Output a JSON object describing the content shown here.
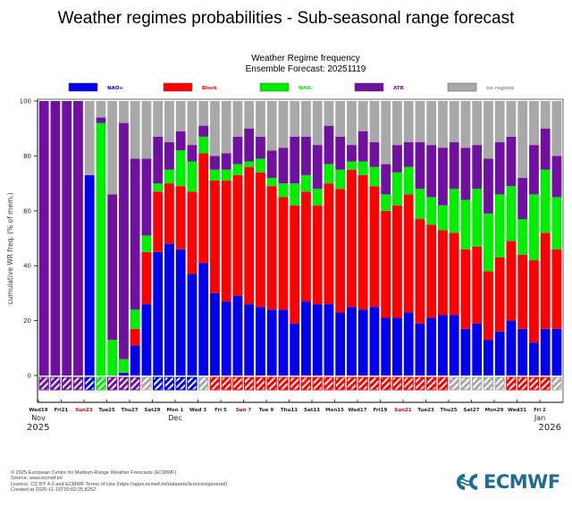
{
  "page": {
    "title": "Weather regimes probabilities - Sub-seasonal range forecast"
  },
  "footer": {
    "lines": [
      "© 2025 European Centre for Medium-Range Weather Forecasts (ECMWF)",
      "Source: www.ecmwf.int",
      "Licence: CC BY 4.0 and ECMWF Terms of Use (https://apps.ecmwf.int/datasets/licences/general/)",
      "Created at 2025-11-19T20:02:25.825Z"
    ],
    "logo_text": "ECMWF"
  },
  "chart_data": {
    "type": "bar",
    "stacked": true,
    "title": "Weather Regime frequency",
    "subtitle": "Ensemble Forecast: 20251119",
    "ylabel": "cumulative WR freq. (% of mem.)",
    "xlabel": "",
    "ylim": [
      0,
      100
    ],
    "yticks": [
      0,
      20,
      40,
      60,
      80,
      100
    ],
    "grid": false,
    "legend_position": "top",
    "start_date": "2025-11-19",
    "xtick_labels": [
      "Wed19",
      "Fri21",
      "Sun23",
      "Tue25",
      "Thu27",
      "Sat29",
      "Mon 1",
      "Wed 3",
      "Fri 5",
      "Sun 7",
      "Tue 9",
      "Thu11",
      "Sat13",
      "Mon15",
      "Wed17",
      "Fri19",
      "Sun21",
      "Tue23",
      "Thu25",
      "Sat27",
      "Mon29",
      "Wed31",
      "Fri 2"
    ],
    "xtick_highlight_color": "#d00000",
    "xtick_highlight": [
      "Sun23",
      "Sun 7",
      "Sun21"
    ],
    "month_labels": [
      {
        "label": "Nov",
        "tick": "Wed19"
      },
      {
        "label": "Dec",
        "tick": "Mon 1"
      },
      {
        "label": "Jan",
        "tick": "Fri 2"
      }
    ],
    "year_labels": [
      {
        "label": "2025",
        "side": "left"
      },
      {
        "label": "2026",
        "side": "right"
      }
    ],
    "series": [
      {
        "name": "NAO+",
        "color": "#0000ee",
        "values": [
          0,
          0,
          0,
          0,
          73,
          0,
          0,
          1,
          11,
          26,
          45,
          48,
          46,
          37,
          41,
          30,
          27,
          29,
          26,
          25,
          24,
          24,
          19,
          27,
          26,
          26,
          23,
          25,
          24,
          25,
          21,
          21,
          23,
          19,
          21,
          22,
          22,
          17,
          19,
          13,
          16,
          20,
          17,
          12,
          17,
          17
        ]
      },
      {
        "name": "Block",
        "color": "#ff0000",
        "values": [
          0,
          0,
          0,
          0,
          0,
          0,
          0,
          0,
          6,
          19,
          22,
          22,
          23,
          30,
          40,
          41,
          44,
          44,
          50,
          49,
          45,
          41,
          43,
          40,
          36,
          44,
          45,
          50,
          49,
          44,
          39,
          41,
          43,
          38,
          34,
          31,
          30,
          29,
          28,
          25,
          27,
          29,
          27,
          30,
          35,
          29
        ]
      },
      {
        "name": "NAO-",
        "color": "#00ee00",
        "values": [
          0,
          0,
          0,
          0,
          0,
          92,
          13,
          5,
          7,
          6,
          3,
          5,
          13,
          11,
          6,
          4,
          4,
          4,
          2,
          5,
          3,
          5,
          8,
          6,
          6,
          7,
          7,
          3,
          5,
          7,
          6,
          12,
          10,
          11,
          10,
          9,
          16,
          18,
          21,
          21,
          23,
          20,
          13,
          24,
          23,
          19
        ]
      },
      {
        "name": "ATR",
        "color": "#7010a0",
        "values": [
          100,
          100,
          100,
          100,
          0,
          2,
          53,
          86,
          55,
          28,
          17,
          10,
          7,
          6,
          4,
          5,
          6,
          10,
          12,
          8,
          10,
          13,
          17,
          14,
          16,
          14,
          12,
          6,
          11,
          9,
          11,
          10,
          9,
          17,
          19,
          21,
          17,
          19,
          16,
          20,
          19,
          18,
          15,
          18,
          15,
          15
        ]
      },
      {
        "name": "no regime",
        "color": "#a8a8a8",
        "values": [
          0,
          0,
          0,
          0,
          27,
          6,
          34,
          8,
          21,
          21,
          13,
          15,
          11,
          16,
          9,
          20,
          19,
          13,
          10,
          13,
          18,
          17,
          13,
          13,
          16,
          9,
          13,
          16,
          11,
          15,
          23,
          16,
          15,
          15,
          16,
          17,
          15,
          17,
          16,
          21,
          15,
          13,
          28,
          16,
          10,
          20
        ]
      }
    ],
    "dominant_regime": [
      "ATR",
      "ATR",
      "ATR",
      "ATR",
      "NAO+",
      "NAO-",
      "ATR",
      "ATR",
      "ATR",
      "no regime",
      "NAO+",
      "NAO+",
      "NAO+",
      "NAO+",
      "no regime",
      "Block",
      "Block",
      "Block",
      "Block",
      "Block",
      "Block",
      "Block",
      "Block",
      "Block",
      "Block",
      "Block",
      "Block",
      "Block",
      "Block",
      "Block",
      "Block",
      "Block",
      "Block",
      "Block",
      "Block",
      "Block",
      "no regime",
      "no regime",
      "no regime",
      "no regime",
      "no regime",
      "Block",
      "Block",
      "Block",
      "Block",
      "no regime"
    ]
  }
}
